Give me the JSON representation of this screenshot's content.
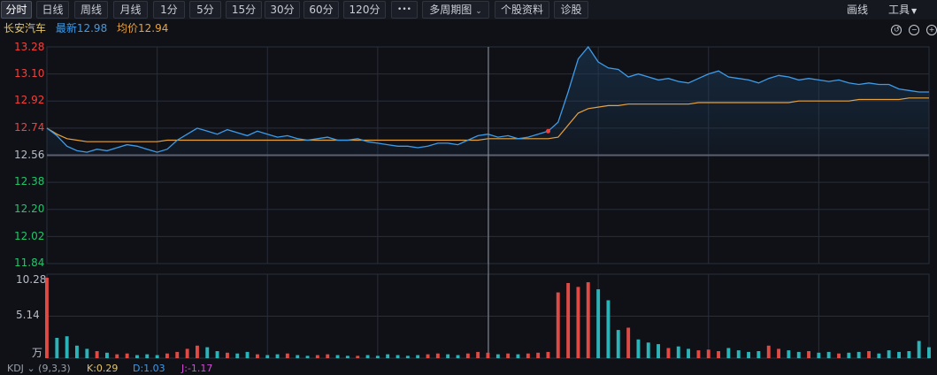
{
  "toolbar": {
    "tabs": [
      {
        "label": "分时",
        "active": true
      },
      {
        "label": "日线"
      },
      {
        "label": "周线"
      },
      {
        "label": "月线"
      },
      {
        "label": "1分"
      },
      {
        "label": "5分"
      },
      {
        "label": "15分"
      },
      {
        "label": "30分"
      },
      {
        "label": "60分"
      },
      {
        "label": "120分"
      },
      {
        "label": "•••"
      },
      {
        "label": "多周期图"
      },
      {
        "label": "个股资料"
      },
      {
        "label": "诊股"
      }
    ],
    "draw_label": "画线",
    "tools_label": "工具"
  },
  "info": {
    "stock_name": "长安汽车",
    "latest": "最新12.98",
    "average": "均价12.94"
  },
  "price_axis": {
    "labels": [
      "13.28",
      "13.10",
      "12.92",
      "12.74",
      "12.56",
      "12.38",
      "12.20",
      "12.02",
      "11.84"
    ],
    "prev_close": 12.56
  },
  "volume_axis": {
    "labels": [
      "10.28",
      "5.14",
      "万"
    ]
  },
  "indicator": {
    "name": "KDJ",
    "params": "(9,3,3)",
    "k": "K:0.29",
    "d": "D:1.03",
    "j": "J:-1.17"
  },
  "colors": {
    "up": "#f0413c",
    "down": "#23c56b",
    "price_line": "#3d9be8",
    "avg_line": "#e9a23b",
    "vol_up": "#e04a44",
    "vol_down": "#2bb3b8"
  },
  "chart_data": {
    "type": "line",
    "ylim": [
      11.84,
      13.28
    ],
    "series": [
      {
        "values": [
          12.74,
          12.69,
          12.62,
          12.59,
          12.58,
          12.6,
          12.59,
          12.61,
          12.63,
          12.62,
          12.6,
          12.58,
          12.6,
          12.66,
          12.7,
          12.74,
          12.72,
          12.7,
          12.73,
          12.71,
          12.69,
          12.72,
          12.7,
          12.68,
          12.69,
          12.67,
          12.66,
          12.67,
          12.68,
          12.66,
          12.66,
          12.67,
          12.65,
          12.64,
          12.63,
          12.62,
          12.62,
          12.61,
          12.62,
          12.64,
          12.64,
          12.63,
          12.66,
          12.69,
          12.7,
          12.68,
          12.69,
          12.67,
          12.68,
          12.7,
          12.72,
          12.78,
          12.98,
          13.2,
          13.28,
          13.18,
          13.14,
          13.13,
          13.08,
          13.1,
          13.08,
          13.06,
          13.07,
          13.05,
          13.04,
          13.07,
          13.1,
          13.12,
          13.08,
          13.07,
          13.06,
          13.04,
          13.07,
          13.09,
          13.08,
          13.06,
          13.07,
          13.06,
          13.05,
          13.06,
          13.04,
          13.03,
          13.04,
          13.03,
          13.03,
          13.0,
          12.99,
          12.98,
          12.98
        ]
      },
      {
        "values": [
          12.74,
          12.7,
          12.67,
          12.66,
          12.65,
          12.65,
          12.65,
          12.65,
          12.65,
          12.65,
          12.65,
          12.65,
          12.66,
          12.66,
          12.66,
          12.66,
          12.66,
          12.66,
          12.66,
          12.66,
          12.66,
          12.66,
          12.66,
          12.66,
          12.66,
          12.66,
          12.66,
          12.66,
          12.66,
          12.66,
          12.66,
          12.66,
          12.66,
          12.66,
          12.66,
          12.66,
          12.66,
          12.66,
          12.66,
          12.66,
          12.66,
          12.66,
          12.66,
          12.66,
          12.67,
          12.67,
          12.67,
          12.67,
          12.67,
          12.67,
          12.67,
          12.68,
          12.76,
          12.84,
          12.87,
          12.88,
          12.89,
          12.89,
          12.9,
          12.9,
          12.9,
          12.9,
          12.9,
          12.9,
          12.9,
          12.91,
          12.91,
          12.91,
          12.91,
          12.91,
          12.91,
          12.91,
          12.91,
          12.91,
          12.91,
          12.92,
          12.92,
          12.92,
          12.92,
          12.92,
          12.92,
          12.93,
          12.93,
          12.93,
          12.93,
          12.93,
          12.94,
          12.94,
          12.94
        ]
      }
    ],
    "volume": {
      "ylim": [
        0,
        10.28
      ],
      "values": [
        10.28,
        2.6,
        2.8,
        1.6,
        1.2,
        0.9,
        0.7,
        0.5,
        0.6,
        0.4,
        0.5,
        0.4,
        0.6,
        0.8,
        1.2,
        1.6,
        1.4,
        0.9,
        0.7,
        0.6,
        0.8,
        0.5,
        0.4,
        0.5,
        0.6,
        0.4,
        0.3,
        0.4,
        0.5,
        0.4,
        0.3,
        0.3,
        0.4,
        0.3,
        0.5,
        0.4,
        0.3,
        0.4,
        0.5,
        0.6,
        0.5,
        0.4,
        0.6,
        0.8,
        0.7,
        0.5,
        0.6,
        0.5,
        0.6,
        0.7,
        0.8,
        8.4,
        9.6,
        9.1,
        9.7,
        8.8,
        7.4,
        3.6,
        3.9,
        2.4,
        2.0,
        1.8,
        1.3,
        1.5,
        1.2,
        1.0,
        1.1,
        0.9,
        1.3,
        1.0,
        0.8,
        0.9,
        1.6,
        1.2,
        1.0,
        0.8,
        0.9,
        0.7,
        0.8,
        0.6,
        0.7,
        0.8,
        0.9,
        0.6,
        1.0,
        0.8,
        0.9,
        2.2,
        1.4
      ],
      "up": [
        1,
        0,
        0,
        0,
        0,
        1,
        0,
        1,
        1,
        0,
        0,
        0,
        1,
        1,
        1,
        1,
        0,
        0,
        1,
        0,
        0,
        1,
        0,
        0,
        1,
        0,
        0,
        1,
        1,
        0,
        0,
        1,
        0,
        0,
        0,
        0,
        0,
        0,
        1,
        1,
        0,
        0,
        1,
        1,
        1,
        0,
        1,
        0,
        1,
        1,
        1,
        1,
        1,
        1,
        1,
        0,
        0,
        0,
        1,
        0,
        0,
        0,
        1,
        0,
        0,
        1,
        1,
        1,
        0,
        0,
        0,
        0,
        1,
        1,
        0,
        0,
        1,
        0,
        0,
        1,
        0,
        0,
        1,
        0,
        0,
        0,
        0,
        0,
        0
      ]
    }
  }
}
